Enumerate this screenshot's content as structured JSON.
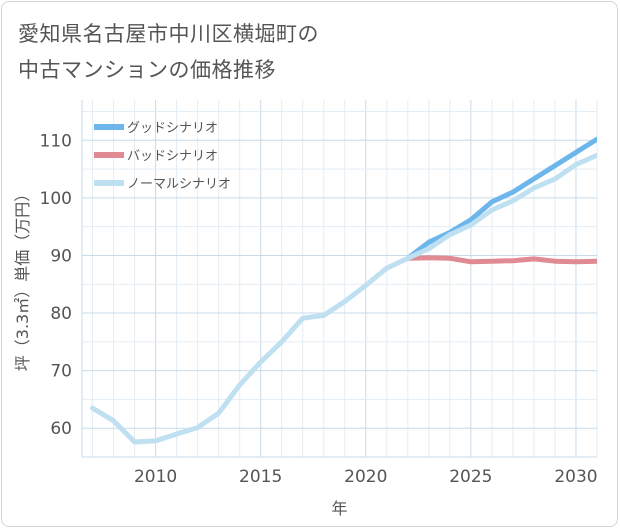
{
  "title": {
    "line1": "愛知県名古屋市中川区横堀町の",
    "line2": "中古マンションの価格推移"
  },
  "chart_data": {
    "type": "line",
    "xlabel": "年",
    "ylabel": "坪（3.3㎡）単価（万円）",
    "xlim": [
      2006.5,
      2031
    ],
    "ylim": [
      55,
      117
    ],
    "xticks": [
      2010,
      2015,
      2020,
      2025,
      2030
    ],
    "yticks": [
      60,
      70,
      80,
      90,
      100,
      110
    ],
    "grid": true,
    "legend_position": "top-left",
    "series": [
      {
        "name": "グッドシナリオ",
        "color": "#6cb6ec",
        "x": [
          2022,
          2023,
          2024,
          2025,
          2026,
          2027,
          2028,
          2029,
          2030,
          2031
        ],
        "y": [
          89.5,
          92.3,
          94,
          96.2,
          99.3,
          101,
          103.3,
          105.6,
          107.9,
          110.2
        ]
      },
      {
        "name": "バッドシナリオ",
        "color": "#e08a94",
        "x": [
          2022,
          2023,
          2024,
          2025,
          2026,
          2027,
          2028,
          2029,
          2030,
          2031
        ],
        "y": [
          89.5,
          89.6,
          89.5,
          88.9,
          89.0,
          89.1,
          89.4,
          89.0,
          88.9,
          89.0
        ]
      },
      {
        "name": "ノーマルシナリオ",
        "color": "#bfe0f1",
        "x": [
          2007,
          2008,
          2009,
          2010,
          2011,
          2012,
          2013,
          2014,
          2015,
          2016,
          2017,
          2018,
          2019,
          2020,
          2021,
          2022,
          2023,
          2024,
          2025,
          2026,
          2027,
          2028,
          2029,
          2030,
          2031
        ],
        "y": [
          63.5,
          61.3,
          57.6,
          57.8,
          59.0,
          60.1,
          62.6,
          67.5,
          71.5,
          75.0,
          79.1,
          79.6,
          82.0,
          84.8,
          87.8,
          89.5,
          91.2,
          93.6,
          95.3,
          97.9,
          99.5,
          101.7,
          103.3,
          105.8,
          107.4
        ]
      }
    ]
  }
}
